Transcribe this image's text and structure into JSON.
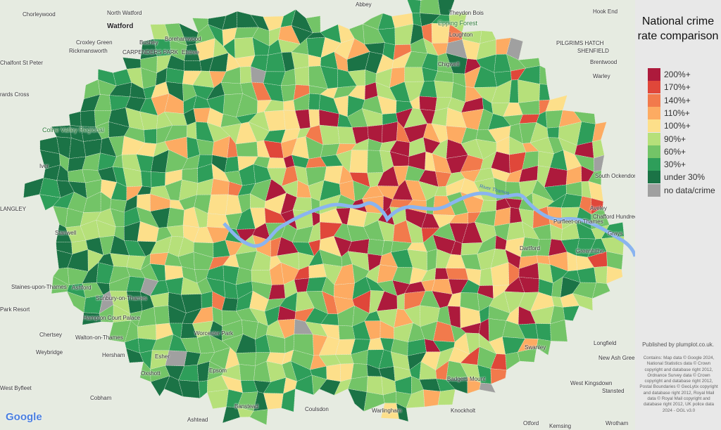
{
  "legend": {
    "title": "National crime rate comparison",
    "items": [
      {
        "label": "200%+",
        "color": "#ad1a3c"
      },
      {
        "label": "170%+",
        "color": "#e0473a"
      },
      {
        "label": "140%+",
        "color": "#f27a4c"
      },
      {
        "label": "110%+",
        "color": "#fdab62"
      },
      {
        "label": "100%+",
        "color": "#fddf8a"
      },
      {
        "label": "90%+",
        "color": "#b6e07a"
      },
      {
        "label": "60%+",
        "color": "#73c467"
      },
      {
        "label": "30%+",
        "color": "#2e9e5a"
      },
      {
        "label": "under 30%",
        "color": "#1b7346"
      },
      {
        "label": "no data/crime",
        "color": "#a0a0a0"
      }
    ]
  },
  "published": "Published by plumplot.co.uk.",
  "attribution": "Contains: Map data © Google 2024, National Statistics data © Crown copyright and database right 2012, Ordnance Survey data © Crown copyright and database right 2012, Postal Boundaries © GeoLytix copyright and database right 2012, Royal Mail data © Royal Mail copyright and database right 2012, UK police data 2024 - OGL v3.0",
  "google_logo": "Google",
  "river_label": "River Thames",
  "places": [
    "North Watford",
    "Abbey",
    "Theydon Bois",
    "Hook End",
    "Chorleywood",
    "Watford",
    "Epping Forest",
    "Croxley Green",
    "Borehamwood",
    "Loughton",
    "Rickmansworth",
    "Bushey",
    "Elstree",
    "CARPENDERS PARK",
    "PILGRIMS HATCH",
    "SHENFIELD",
    "Chalfont St Peter",
    "Chigwell",
    "Brentwood",
    "Warley",
    "rards Cross",
    "Colne Valley Regional",
    "Iver",
    "South Ockendon",
    "LANGLEY",
    "Aveley",
    "Chafford Hundred",
    "Purfleet-on-Thames",
    "Grays",
    "Stanwell",
    "Dartford",
    "Greenhithe",
    "Staines-upon-Thames",
    "Ashford",
    "Sunbury-on-Thames",
    "Park Resort",
    "Hampton Court Palace",
    "Chertsey",
    "Walton-on-Thames",
    "Swanley",
    "Longfield",
    "Weybridge",
    "Esher",
    "Hersham",
    "Worcester Park",
    "New Ash Green",
    "West Byfleet",
    "Oxshott",
    "Epsom",
    "Badgers Mount",
    "West Kingsdown",
    "Stansted",
    "Cobham",
    "Banstead",
    "Coulsdon",
    "Warlingham",
    "Knockholt",
    "Otford",
    "Kemsing",
    "Wrotham",
    "Ashtead"
  ]
}
